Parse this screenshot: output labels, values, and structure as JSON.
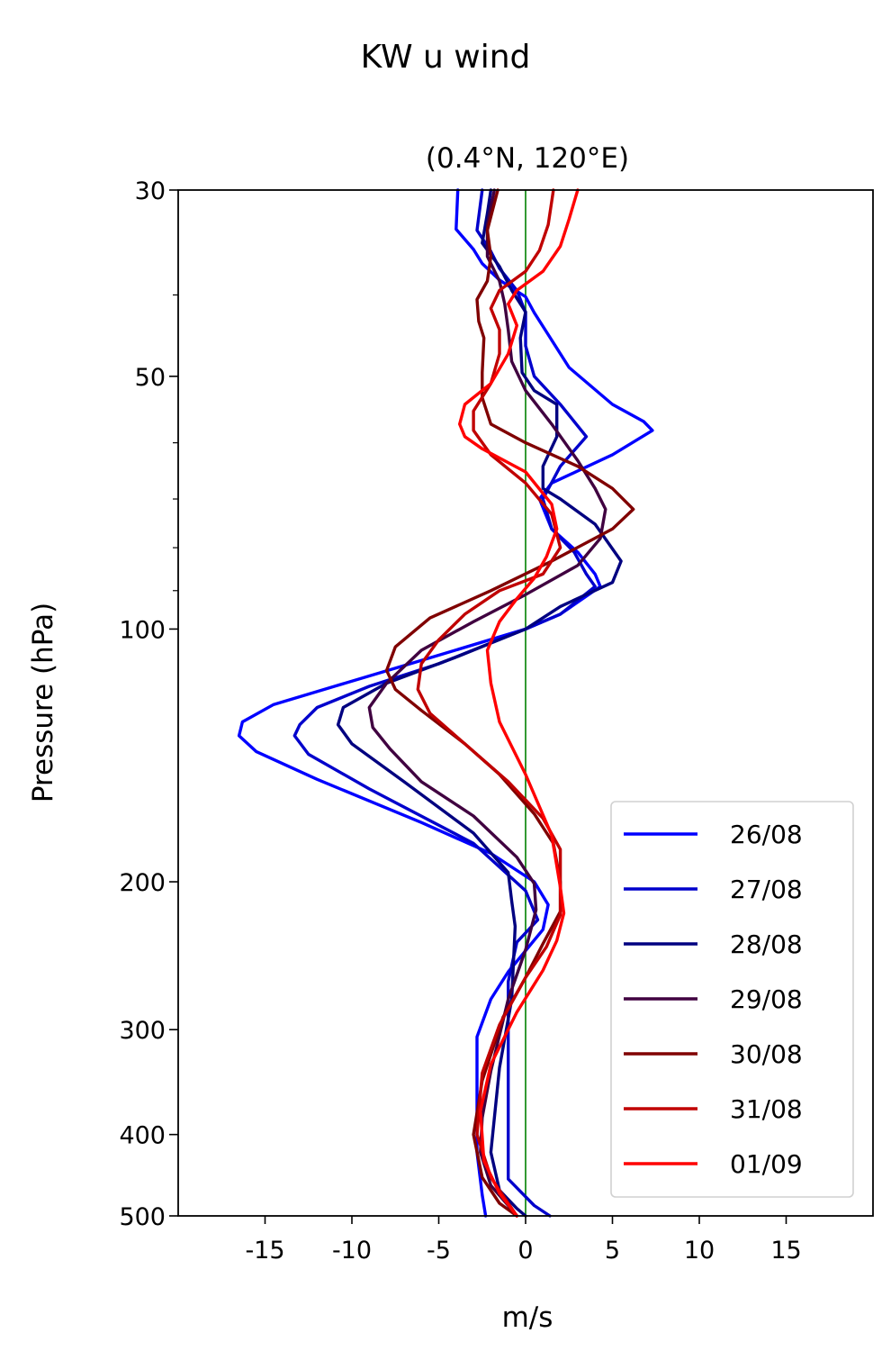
{
  "figure": {
    "suptitle": "KW u wind"
  },
  "chart_data": {
    "type": "line",
    "title": "(0.4°N, 120°E)",
    "xlabel": "m/s",
    "ylabel": "Pressure (hPa)",
    "xlim": [
      -20,
      20
    ],
    "ylim": [
      500,
      30
    ],
    "y_scale": "log",
    "x_ticks": [
      -15,
      -10,
      -5,
      0,
      5,
      10,
      15
    ],
    "x_tick_labels": [
      "-15",
      "-10",
      "-5",
      "0",
      "5",
      "10",
      "15"
    ],
    "y_ticks": [
      30,
      50,
      100,
      200,
      300,
      400,
      500
    ],
    "y_tick_labels": [
      "30",
      "50",
      "100",
      "200",
      "300",
      "400",
      "500"
    ],
    "y_minor_ticks": [
      40,
      60,
      70,
      80,
      90
    ],
    "grid": false,
    "legend_position": "bottom-right",
    "reference_line": {
      "x": 0,
      "color": "#008000"
    },
    "series": [
      {
        "name": "26/08",
        "color": "#0000ff",
        "points": [
          [
            -3.9,
            30
          ],
          [
            -4,
            33.4
          ],
          [
            -3,
            35.3
          ],
          [
            -2.5,
            36.7
          ],
          [
            -1.5,
            38.4
          ],
          [
            0,
            40.2
          ],
          [
            0.5,
            42
          ],
          [
            1.3,
            44.6
          ],
          [
            2.5,
            48.8
          ],
          [
            5,
            54
          ],
          [
            6.8,
            56.6
          ],
          [
            7.3,
            58
          ],
          [
            5,
            62
          ],
          [
            1.5,
            67
          ],
          [
            0.8,
            70
          ],
          [
            1.5,
            76
          ],
          [
            3,
            81
          ],
          [
            4,
            86
          ],
          [
            4.3,
            89
          ],
          [
            2,
            96
          ],
          [
            0,
            100
          ],
          [
            -6,
            109
          ],
          [
            -11,
            117
          ],
          [
            -14.5,
            123
          ],
          [
            -16.3,
            129
          ],
          [
            -16.5,
            134
          ],
          [
            -15.5,
            140
          ],
          [
            -12,
            151
          ],
          [
            -6,
            170
          ],
          [
            -2,
            185
          ],
          [
            0.5,
            200
          ],
          [
            1.3,
            213
          ],
          [
            1,
            228
          ],
          [
            -1,
            256
          ],
          [
            -2,
            276
          ],
          [
            -2.8,
            306
          ],
          [
            -2.8,
            345
          ],
          [
            -2.8,
            420
          ],
          [
            -2.5,
            472
          ],
          [
            -2.3,
            500
          ]
        ]
      },
      {
        "name": "27/08",
        "color": "#0000cc",
        "points": [
          [
            -2.5,
            30
          ],
          [
            -2.8,
            33.5
          ],
          [
            -2,
            35.5
          ],
          [
            -1.5,
            37.2
          ],
          [
            -0.5,
            39.5
          ],
          [
            0,
            42
          ],
          [
            0,
            46
          ],
          [
            0.5,
            50
          ],
          [
            2,
            54
          ],
          [
            3.5,
            59
          ],
          [
            2,
            64
          ],
          [
            1,
            70
          ],
          [
            1.5,
            76
          ],
          [
            2.8,
            81
          ],
          [
            3.5,
            86
          ],
          [
            4,
            89
          ],
          [
            2,
            96
          ],
          [
            0,
            100
          ],
          [
            -5,
            110
          ],
          [
            -9,
            117
          ],
          [
            -12,
            124
          ],
          [
            -13,
            130
          ],
          [
            -13.3,
            134
          ],
          [
            -12.5,
            141
          ],
          [
            -9,
            155
          ],
          [
            -3,
            180
          ],
          [
            0,
            205
          ],
          [
            0.7,
            222
          ],
          [
            -0.5,
            236
          ],
          [
            -1,
            263
          ],
          [
            -1,
            300
          ],
          [
            -1,
            375
          ],
          [
            -1,
            452
          ],
          [
            0.5,
            486
          ],
          [
            1.4,
            500
          ]
        ]
      },
      {
        "name": "28/08",
        "color": "#000080",
        "points": [
          [
            -2,
            30
          ],
          [
            -2.2,
            32
          ],
          [
            -2.5,
            34.7
          ],
          [
            -1.5,
            37
          ],
          [
            -0.8,
            39.5
          ],
          [
            0,
            41.9
          ],
          [
            -0.3,
            45
          ],
          [
            -0.2,
            49.5
          ],
          [
            0.5,
            52
          ],
          [
            1.8,
            54
          ],
          [
            1.8,
            59
          ],
          [
            1,
            64
          ],
          [
            1,
            68
          ],
          [
            2,
            70
          ],
          [
            4,
            75
          ],
          [
            5.5,
            83
          ],
          [
            5,
            88
          ],
          [
            2,
            94
          ],
          [
            0,
            100
          ],
          [
            -4,
            108
          ],
          [
            -8,
            116
          ],
          [
            -10.5,
            124
          ],
          [
            -10.8,
            130
          ],
          [
            -10,
            137
          ],
          [
            -7,
            152
          ],
          [
            -3,
            175
          ],
          [
            -1,
            195
          ],
          [
            -0.8,
            211
          ],
          [
            -0.6,
            226
          ],
          [
            -0.8,
            276
          ],
          [
            -1.5,
            333
          ],
          [
            -2,
            420
          ],
          [
            -1.5,
            466
          ],
          [
            -0.5,
            490
          ],
          [
            0,
            500
          ]
        ]
      },
      {
        "name": "29/08",
        "color": "#400040",
        "points": [
          [
            -1.8,
            30
          ],
          [
            -2.2,
            33
          ],
          [
            -2.2,
            36
          ],
          [
            -1.5,
            38.5
          ],
          [
            -1.2,
            41
          ],
          [
            -1,
            44
          ],
          [
            -0.8,
            48
          ],
          [
            0,
            52
          ],
          [
            1.5,
            57
          ],
          [
            3,
            63
          ],
          [
            4,
            68
          ],
          [
            4.6,
            72
          ],
          [
            4.3,
            78
          ],
          [
            3,
            84
          ],
          [
            0,
            91
          ],
          [
            -3,
            98
          ],
          [
            -6,
            106
          ],
          [
            -8,
            116
          ],
          [
            -9,
            124
          ],
          [
            -8.8,
            131
          ],
          [
            -7.8,
            139
          ],
          [
            -6,
            152
          ],
          [
            -3,
            167
          ],
          [
            -0.5,
            187
          ],
          [
            0.5,
            201
          ],
          [
            0.6,
            216
          ],
          [
            0,
            241
          ],
          [
            -1,
            276
          ],
          [
            -2,
            336
          ],
          [
            -2.5,
            382
          ],
          [
            -2.6,
            420
          ],
          [
            -2,
            460
          ],
          [
            -1,
            486
          ],
          [
            -0.5,
            500
          ]
        ]
      },
      {
        "name": "30/08",
        "color": "#800000",
        "points": [
          [
            -1.6,
            30
          ],
          [
            -2.2,
            33.5
          ],
          [
            -2,
            36
          ],
          [
            -2.2,
            38.5
          ],
          [
            -2.8,
            40.5
          ],
          [
            -2.7,
            43
          ],
          [
            -2.4,
            45
          ],
          [
            -2.5,
            49.5
          ],
          [
            -2.5,
            53
          ],
          [
            -2,
            57
          ],
          [
            0,
            60
          ],
          [
            3,
            64
          ],
          [
            5,
            68
          ],
          [
            6.2,
            72
          ],
          [
            5,
            76
          ],
          [
            1.5,
            83
          ],
          [
            -2,
            90
          ],
          [
            -5.5,
            97
          ],
          [
            -7.5,
            105
          ],
          [
            -8,
            112
          ],
          [
            -7.5,
            118
          ],
          [
            -6,
            125
          ],
          [
            -3.5,
            137
          ],
          [
            -1.5,
            149
          ],
          [
            0.5,
            166
          ],
          [
            1.6,
            180
          ],
          [
            2,
            200
          ],
          [
            2,
            217
          ],
          [
            1,
            237
          ],
          [
            0,
            260
          ],
          [
            -1.3,
            290
          ],
          [
            -2.5,
            345
          ],
          [
            -3,
            400
          ],
          [
            -2.5,
            450
          ],
          [
            -1.5,
            483
          ],
          [
            -0.5,
            500
          ]
        ]
      },
      {
        "name": "31/08",
        "color": "#c00000",
        "points": [
          [
            1.6,
            30
          ],
          [
            1.3,
            33
          ],
          [
            0.8,
            35.4
          ],
          [
            0,
            37.5
          ],
          [
            -1.5,
            39.5
          ],
          [
            -2,
            41.5
          ],
          [
            -1.5,
            44
          ],
          [
            -1.5,
            47
          ],
          [
            -2,
            51
          ],
          [
            -3,
            55
          ],
          [
            -3,
            58
          ],
          [
            -2,
            62
          ],
          [
            0,
            67
          ],
          [
            1.5,
            73
          ],
          [
            2,
            80
          ],
          [
            1,
            86
          ],
          [
            -1.5,
            90
          ],
          [
            -3.5,
            96
          ],
          [
            -5,
            103
          ],
          [
            -6,
            110
          ],
          [
            -6.2,
            118
          ],
          [
            -5.5,
            126
          ],
          [
            -3.5,
            137
          ],
          [
            -1,
            152
          ],
          [
            1,
            168
          ],
          [
            2,
            183
          ],
          [
            2,
            200
          ],
          [
            2,
            219
          ],
          [
            1.2,
            239
          ],
          [
            0,
            260
          ],
          [
            -1.5,
            296
          ],
          [
            -2.5,
            338
          ],
          [
            -2.8,
            400
          ],
          [
            -2,
            450
          ],
          [
            -1,
            483
          ],
          [
            -0.5,
            500
          ]
        ]
      },
      {
        "name": "01/09",
        "color": "#ff0000",
        "points": [
          [
            3,
            30
          ],
          [
            2.5,
            32.5
          ],
          [
            2,
            35
          ],
          [
            1,
            37.5
          ],
          [
            -0.5,
            39.5
          ],
          [
            -1,
            41
          ],
          [
            -0.5,
            43.5
          ],
          [
            -1,
            47
          ],
          [
            -2,
            51
          ],
          [
            -3.5,
            54
          ],
          [
            -3.8,
            57
          ],
          [
            -3.5,
            59
          ],
          [
            -2.5,
            61
          ],
          [
            0,
            65
          ],
          [
            1.5,
            71
          ],
          [
            1.8,
            76
          ],
          [
            1.2,
            82
          ],
          [
            0.5,
            87
          ],
          [
            -0.5,
            92
          ],
          [
            -1.5,
            98
          ],
          [
            -2.2,
            106
          ],
          [
            -2,
            116
          ],
          [
            -1.5,
            129
          ],
          [
            0,
            149
          ],
          [
            1.5,
            176
          ],
          [
            2,
            203
          ],
          [
            2.2,
            218
          ],
          [
            1.8,
            235
          ],
          [
            1,
            255
          ],
          [
            -0.5,
            286
          ],
          [
            -2,
            330
          ],
          [
            -2.6,
            375
          ],
          [
            -2.4,
            430
          ],
          [
            -1.5,
            470
          ],
          [
            -0.5,
            500
          ]
        ]
      }
    ]
  }
}
